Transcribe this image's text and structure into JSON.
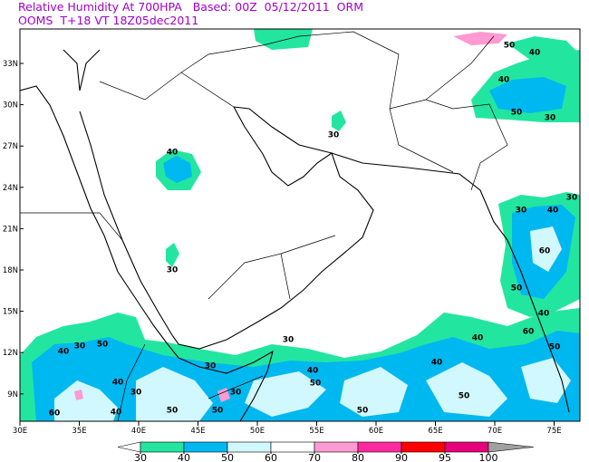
{
  "header": {
    "line1": "Relative Humidity At 700HPA   Based: 00Z  05/12/2011  ORM",
    "line2": "OOMS  T+18 VT 18Z05dec2011"
  },
  "map": {
    "lon_labels": [
      "30E",
      "35E",
      "40E",
      "45E",
      "50E",
      "55E",
      "60E",
      "65E",
      "70E",
      "75E"
    ],
    "lat_labels": [
      "33N",
      "30N",
      "27N",
      "24N",
      "21N",
      "18N",
      "15N",
      "12N",
      "9N"
    ],
    "contour_labels": [
      40,
      30,
      30,
      40,
      50,
      30,
      50,
      40,
      30,
      30,
      40,
      60,
      50,
      40,
      60,
      50,
      40,
      40,
      50,
      50,
      50,
      40,
      30,
      30,
      30,
      50,
      50,
      30,
      40,
      50,
      30,
      40,
      60,
      40
    ]
  },
  "colorbar": {
    "levels": [
      30,
      40,
      50,
      60,
      70,
      80,
      90,
      95,
      100
    ],
    "colors": [
      "#ffffff",
      "#22e6a0",
      "#00b8f0",
      "#d2f8ff",
      "#ffffff",
      "#ff9ad2",
      "#ff2aa0",
      "#ff0000",
      "#e6007a",
      "#a0a0a0"
    ]
  }
}
